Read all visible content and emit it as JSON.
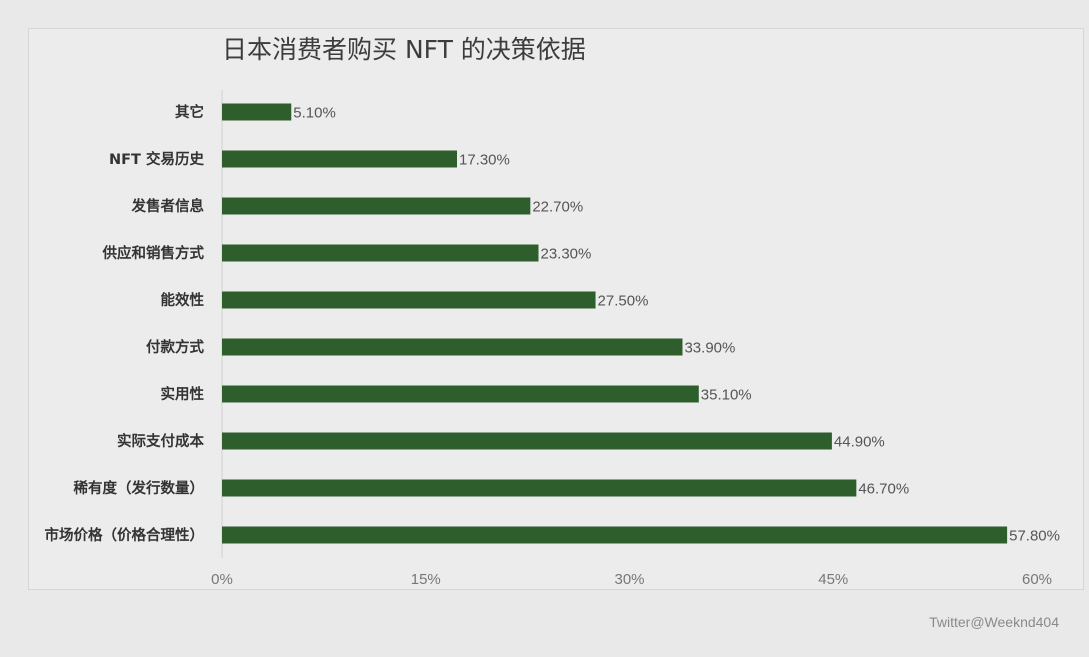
{
  "chart_data": {
    "type": "bar",
    "orientation": "horizontal",
    "title": "日本消费者购买 NFT 的决策依据",
    "categories": [
      "其它",
      "NFT 交易历史",
      "发售者信息",
      "供应和销售方式",
      "能效性",
      "付款方式",
      "实用性",
      "实际支付成本",
      "稀有度（发行数量）",
      "市场价格（价格合理性）"
    ],
    "values": [
      5.1,
      17.3,
      22.7,
      23.3,
      27.5,
      33.9,
      35.1,
      44.9,
      46.7,
      57.8
    ],
    "data_labels": [
      "5.10%",
      "17.30%",
      "22.70%",
      "23.30%",
      "27.50%",
      "33.90%",
      "35.10%",
      "44.90%",
      "46.70%",
      "57.80%"
    ],
    "x_ticks": [
      0,
      15,
      30,
      45,
      60
    ],
    "x_tick_labels": [
      "0%",
      "15%",
      "30%",
      "45%",
      "60%"
    ],
    "xlim": [
      0,
      60
    ],
    "xlabel": "",
    "ylabel": "",
    "grid": false,
    "legend": "none",
    "bar_color": "#2e5e2c"
  },
  "watermark": "Twitter@Weeknd404"
}
